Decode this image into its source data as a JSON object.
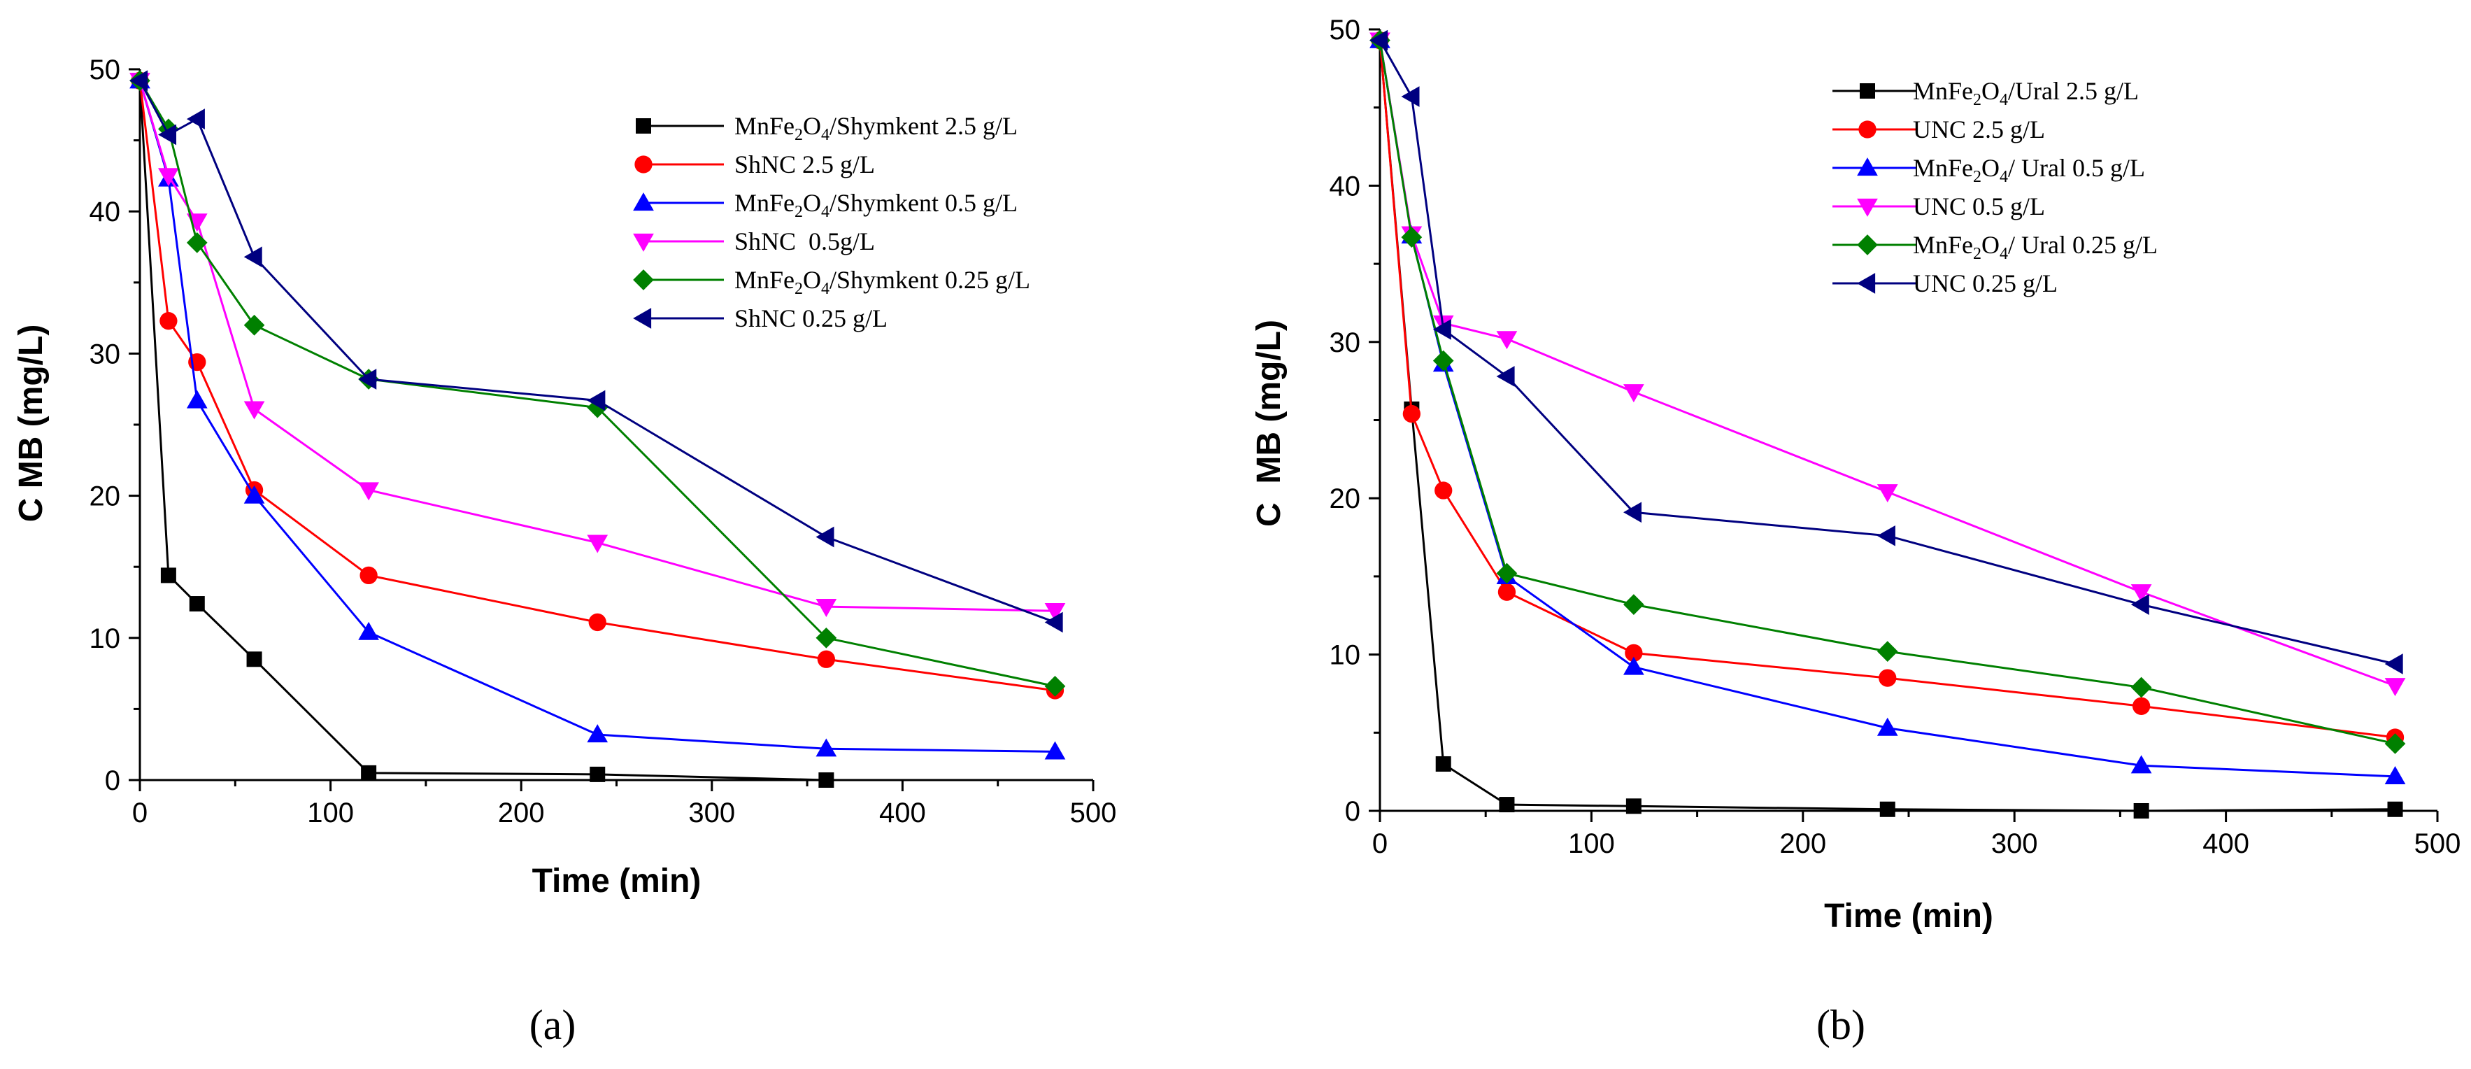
{
  "chart_data": [
    {
      "type": "line",
      "panel_label": "(a)",
      "xlabel": "Time (min)",
      "ylabel": "C MB (mg/L)",
      "xlim": [
        0,
        500
      ],
      "ylim": [
        0,
        50
      ],
      "xticks": [
        0,
        100,
        200,
        300,
        400,
        500
      ],
      "yticks": [
        0,
        10,
        20,
        30,
        40,
        50
      ],
      "legend_position": "top-right",
      "grid": false,
      "series": [
        {
          "name": "MnFe2O4/Shymkent 2.5 g/L",
          "legend_parts": [
            [
              "MnFe",
              "n"
            ],
            [
              "2",
              "sub"
            ],
            [
              "O",
              "n"
            ],
            [
              "4",
              "sub"
            ],
            [
              "/Shymkent 2.5 g/L",
              "n"
            ]
          ],
          "color": "#000000",
          "marker": "square",
          "x": [
            0,
            15,
            30,
            60,
            120,
            240,
            360
          ],
          "y": [
            49.2,
            14.4,
            12.4,
            8.5,
            0.5,
            0.4,
            0.0
          ]
        },
        {
          "name": "ShNC 2.5 g/L",
          "legend_parts": [
            [
              "ShNC 2.5 g/L",
              "n"
            ]
          ],
          "color": "#ff0000",
          "marker": "circle",
          "x": [
            0,
            15,
            30,
            60,
            120,
            240,
            360,
            480
          ],
          "y": [
            49.2,
            32.3,
            29.4,
            20.4,
            14.4,
            11.1,
            8.5,
            6.3
          ]
        },
        {
          "name": "MnFe2O4/Shymkent 0.5 g/L",
          "legend_parts": [
            [
              "MnFe",
              "n"
            ],
            [
              "2",
              "sub"
            ],
            [
              "O",
              "n"
            ],
            [
              "4",
              "sub"
            ],
            [
              "/Shymkent 0.5 g/L",
              "n"
            ]
          ],
          "color": "#0000ff",
          "marker": "triangle-up",
          "x": [
            0,
            15,
            30,
            60,
            120,
            240,
            360,
            480
          ],
          "y": [
            49.2,
            42.3,
            26.7,
            20.0,
            10.4,
            3.2,
            2.2,
            2.0
          ]
        },
        {
          "name": "ShNC  0.5g/L",
          "legend_parts": [
            [
              "ShNC  0.5g/L",
              "n"
            ]
          ],
          "color": "#ff00ff",
          "marker": "triangle-down",
          "x": [
            0,
            15,
            30,
            60,
            120,
            240,
            360,
            480
          ],
          "y": [
            49.2,
            42.5,
            39.3,
            26.1,
            20.4,
            16.7,
            12.2,
            11.9
          ]
        },
        {
          "name": "MnFe2O4/Shymkent 0.25 g/L",
          "legend_parts": [
            [
              "MnFe",
              "n"
            ],
            [
              "2",
              "sub"
            ],
            [
              "O",
              "n"
            ],
            [
              "4",
              "sub"
            ],
            [
              "/Shymkent 0.25 g/L",
              "n"
            ]
          ],
          "color": "#008000",
          "marker": "diamond",
          "x": [
            0,
            15,
            30,
            60,
            120,
            240,
            360,
            480
          ],
          "y": [
            49.2,
            45.8,
            37.8,
            32.0,
            28.2,
            26.2,
            10.0,
            6.6
          ]
        },
        {
          "name": "ShNC 0.25 g/L",
          "legend_parts": [
            [
              "ShNC 0.25 g/L",
              "n"
            ]
          ],
          "color": "#000080",
          "marker": "triangle-left",
          "x": [
            0,
            15,
            30,
            60,
            120,
            240,
            360,
            480
          ],
          "y": [
            49.2,
            45.4,
            46.5,
            36.8,
            28.2,
            26.7,
            17.1,
            11.1
          ]
        }
      ]
    },
    {
      "type": "line",
      "panel_label": "(b)",
      "xlabel": "Time (min)",
      "ylabel": "C  MB (mg/L)",
      "xlim": [
        0,
        500
      ],
      "ylim": [
        0,
        50
      ],
      "xticks": [
        0,
        100,
        200,
        300,
        400,
        500
      ],
      "yticks": [
        0,
        10,
        20,
        30,
        40,
        50
      ],
      "legend_position": "top-right",
      "grid": false,
      "series": [
        {
          "name": "MnFe2O4/Ural 2.5 g/L",
          "legend_parts": [
            [
              "MnFe",
              "n"
            ],
            [
              "2",
              "sub"
            ],
            [
              "O",
              "n"
            ],
            [
              "4",
              "sub"
            ],
            [
              "/Ural 2.5 g/L",
              "n"
            ]
          ],
          "color": "#000000",
          "marker": "square",
          "x": [
            0,
            15,
            30,
            60,
            120,
            240,
            360,
            480
          ],
          "y": [
            49.3,
            25.7,
            3.0,
            0.4,
            0.3,
            0.1,
            0.0,
            0.1
          ]
        },
        {
          "name": "UNC 2.5 g/L",
          "legend_parts": [
            [
              "UNC 2.5 g/L",
              "n"
            ]
          ],
          "color": "#ff0000",
          "marker": "circle",
          "x": [
            0,
            15,
            30,
            60,
            120,
            240,
            360,
            480
          ],
          "y": [
            49.3,
            25.4,
            20.5,
            14.0,
            10.1,
            8.5,
            6.7,
            4.7
          ]
        },
        {
          "name": "MnFe2O4/ Ural 0.5 g/L",
          "legend_parts": [
            [
              "MnFe",
              "n"
            ],
            [
              "2",
              "sub"
            ],
            [
              "O",
              "n"
            ],
            [
              "4",
              "sub"
            ],
            [
              "/ Ural 0.5 g/L",
              "n"
            ]
          ],
          "color": "#0000ff",
          "marker": "triangle-up",
          "x": [
            0,
            15,
            30,
            60,
            120,
            240,
            360,
            480
          ],
          "y": [
            49.3,
            36.8,
            28.6,
            15.0,
            9.2,
            5.3,
            2.9,
            2.2
          ]
        },
        {
          "name": "UNC 0.5 g/L",
          "legend_parts": [
            [
              "UNC 0.5 g/L",
              "n"
            ]
          ],
          "color": "#ff00ff",
          "marker": "triangle-down",
          "x": [
            0,
            15,
            30,
            60,
            120,
            240,
            360,
            480
          ],
          "y": [
            49.3,
            36.9,
            31.2,
            30.2,
            26.8,
            20.4,
            14.0,
            8.0
          ]
        },
        {
          "name": "MnFe2O4/ Ural 0.25 g/L",
          "legend_parts": [
            [
              "MnFe",
              "n"
            ],
            [
              "2",
              "sub"
            ],
            [
              "O",
              "n"
            ],
            [
              "4",
              "sub"
            ],
            [
              "/ Ural 0.25 g/L",
              "n"
            ]
          ],
          "color": "#008000",
          "marker": "diamond",
          "x": [
            0,
            15,
            30,
            60,
            120,
            240,
            360,
            480
          ],
          "y": [
            49.3,
            36.7,
            28.8,
            15.2,
            13.2,
            10.2,
            7.9,
            4.3
          ]
        },
        {
          "name": "UNC 0.25 g/L",
          "legend_parts": [
            [
              "UNC 0.25 g/L",
              "n"
            ]
          ],
          "color": "#000080",
          "marker": "triangle-left",
          "x": [
            0,
            15,
            30,
            60,
            120,
            240,
            360,
            480
          ],
          "y": [
            49.3,
            45.7,
            30.8,
            27.8,
            19.1,
            17.6,
            13.2,
            9.4
          ]
        }
      ]
    }
  ]
}
